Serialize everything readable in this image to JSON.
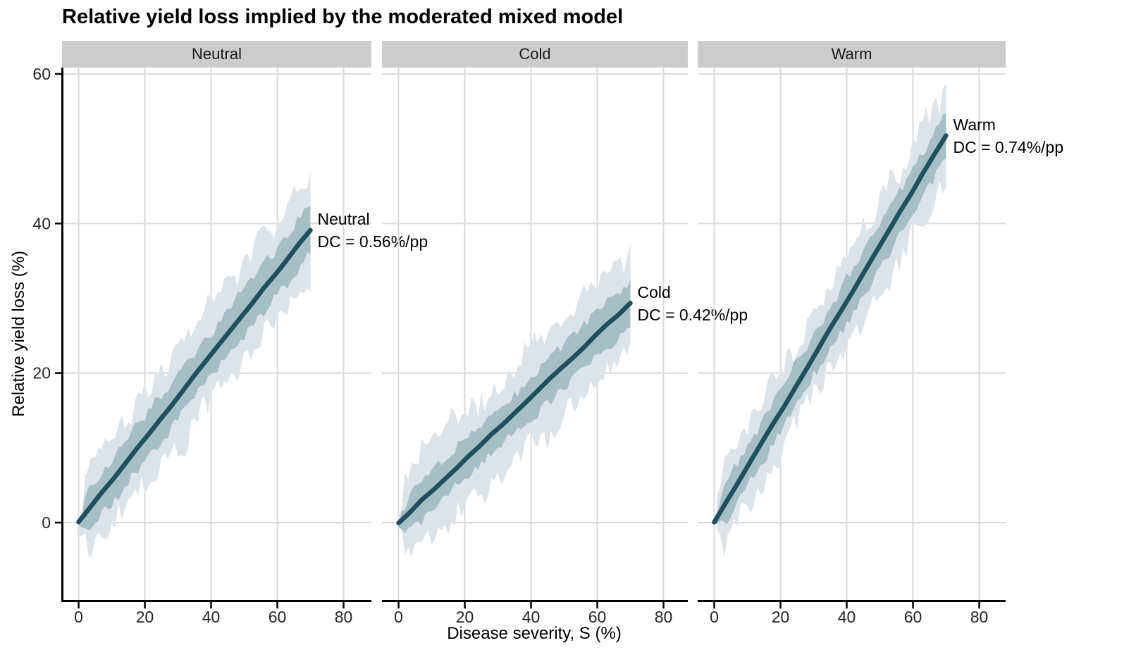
{
  "chart": {
    "title": "Relative yield loss implied by the moderated mixed model",
    "xlabel": "Disease severity, S (%)",
    "ylabel": "Relative yield loss (%)"
  },
  "chart_data": {
    "type": "line",
    "title": "Relative yield loss implied by the moderated mixed model",
    "xlabel": "Disease severity, S (%)",
    "ylabel": "Relative yield loss (%)",
    "x_ticks": [
      0,
      20,
      40,
      60,
      80
    ],
    "y_ticks": [
      0,
      20,
      40,
      60
    ],
    "xlim": [
      -4.7,
      88.5
    ],
    "ylim": [
      -10.4,
      60.9
    ],
    "grid": "major",
    "legend": "none",
    "facets": [
      {
        "label": "Neutral",
        "dc_pct_per_pp": 0.56,
        "annotation": [
          "Neutral",
          "DC = 0.56%/pp"
        ],
        "s": [
          0,
          10,
          20,
          30,
          40,
          50,
          60,
          70
        ],
        "line_y": [
          0,
          5.6,
          11.2,
          16.8,
          22.4,
          28.0,
          33.6,
          39.2
        ],
        "ribbon_inner_halfwidth_end": 3.7,
        "ribbon_outer_halfwidth_end": 7.0
      },
      {
        "label": "Cold",
        "dc_pct_per_pp": 0.42,
        "annotation": [
          "Cold",
          "DC = 0.42%/pp"
        ],
        "s": [
          0,
          10,
          20,
          30,
          40,
          50,
          60,
          70
        ],
        "line_y": [
          0,
          4.2,
          8.4,
          12.6,
          16.8,
          21.0,
          25.2,
          29.4
        ],
        "ribbon_inner_halfwidth_end": 3.4,
        "ribbon_outer_halfwidth_end": 7.0
      },
      {
        "label": "Warm",
        "dc_pct_per_pp": 0.74,
        "annotation": [
          "Warm",
          "DC = 0.74%/pp"
        ],
        "s": [
          0,
          10,
          20,
          30,
          40,
          50,
          60,
          70
        ],
        "line_y": [
          0,
          7.4,
          14.8,
          22.2,
          29.6,
          37.0,
          44.4,
          51.8
        ],
        "ribbon_inner_halfwidth_end": 3.5,
        "ribbon_outer_halfwidth_end": 6.2
      }
    ]
  },
  "colors": {
    "line": "#1d4f5f",
    "ribbon_inner": "#a6bec6",
    "ribbon_outer": "#dde4e9",
    "grid": "#d9d9d9",
    "strip_bg": "#cccccc",
    "axis_line": "#000000",
    "text": "#000000",
    "tick_text": "#262626"
  }
}
